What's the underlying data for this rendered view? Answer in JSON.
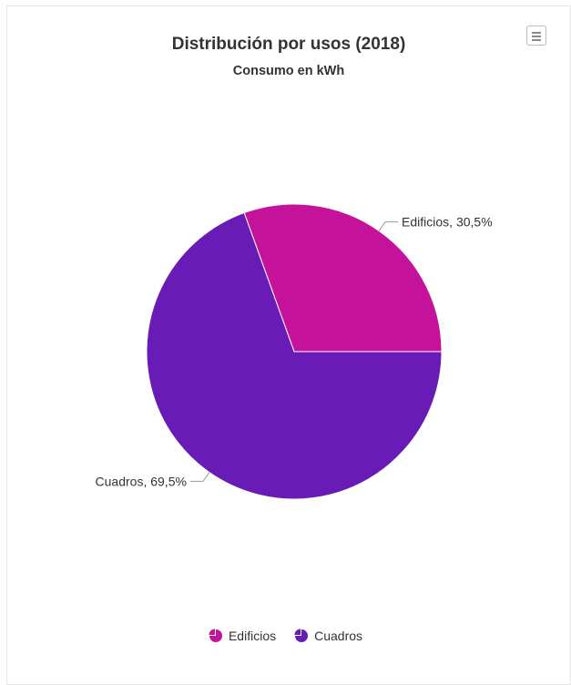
{
  "chart_data": {
    "type": "pie",
    "title": "Distribución por usos (2018)",
    "subtitle": "Consumo en kWh",
    "series": [
      {
        "values": [
          {
            "name": "Edificios",
            "value": 30.5,
            "label": "Edificios, 30,5%",
            "color": "#c4139a"
          },
          {
            "name": "Cuadros",
            "value": 69.5,
            "label": "Cuadros, 69,5%",
            "color": "#681bb5"
          }
        ]
      }
    ],
    "legend": {
      "placement": "bottom",
      "items": [
        {
          "label": "Edificios",
          "color": "#c4139a"
        },
        {
          "label": "Cuadros",
          "color": "#681bb5"
        }
      ]
    }
  },
  "menu": {
    "icon": "hamburger-menu-icon"
  }
}
